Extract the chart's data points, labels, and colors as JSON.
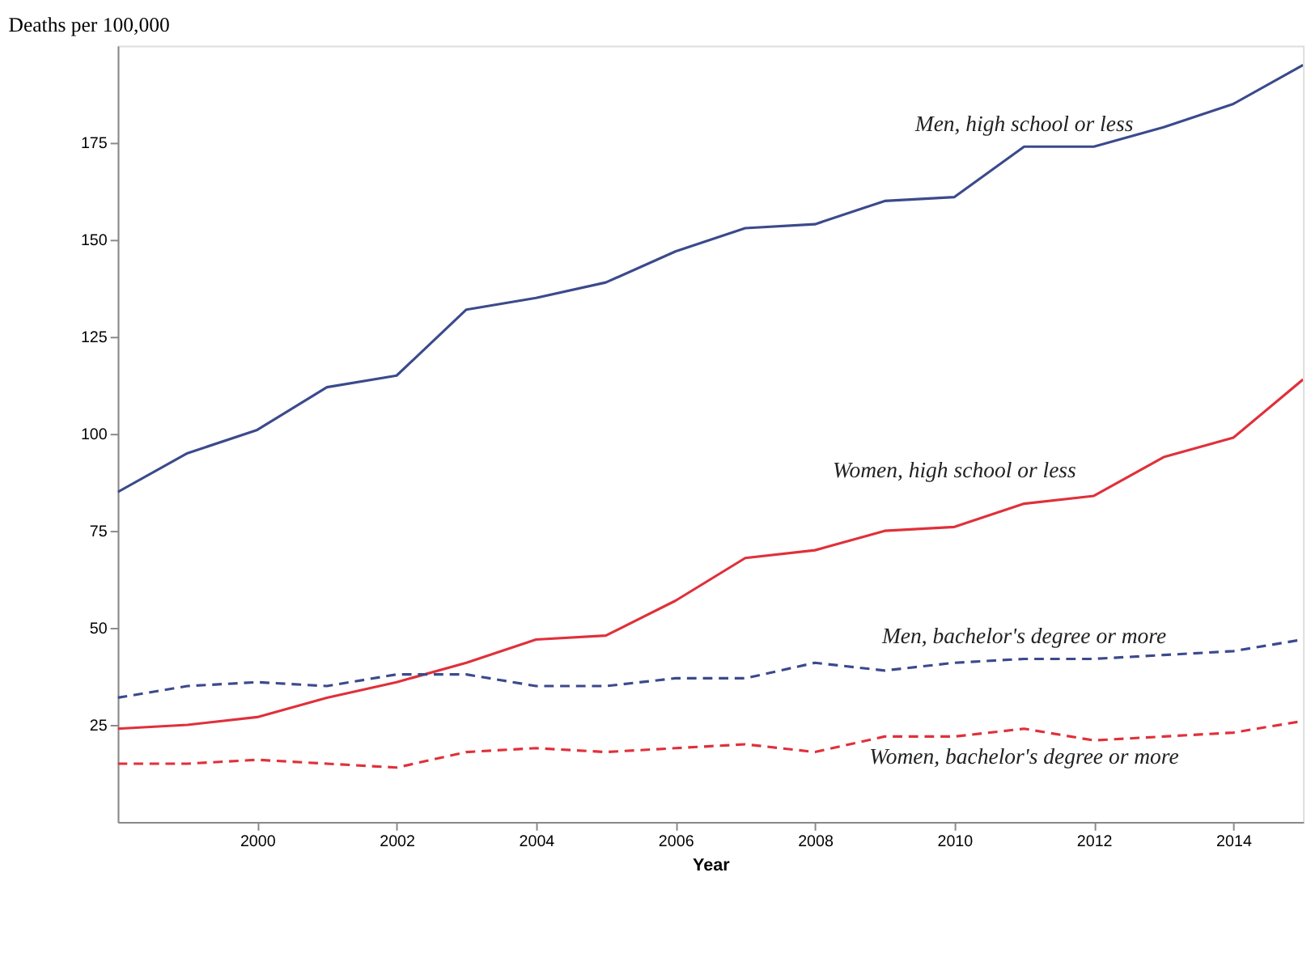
{
  "chart_data": {
    "type": "line",
    "ylabel": "Deaths per 100,000",
    "xlabel": "Year",
    "x": [
      1998,
      1999,
      2000,
      2001,
      2002,
      2003,
      2004,
      2005,
      2006,
      2007,
      2008,
      2009,
      2010,
      2011,
      2012,
      2013,
      2014,
      2015
    ],
    "xlim": [
      1998,
      2015
    ],
    "xticks": [
      2000,
      2002,
      2004,
      2006,
      2008,
      2010,
      2012,
      2014
    ],
    "ylim": [
      0,
      200
    ],
    "yticks": [
      25,
      50,
      75,
      100,
      125,
      150,
      175
    ],
    "grid": false,
    "legend": false,
    "series": [
      {
        "name": "Men, high school or less",
        "color": "#3b4a8c",
        "line_style": "solid",
        "values": [
          85,
          95,
          101,
          112,
          115,
          132,
          135,
          139,
          147,
          153,
          154,
          160,
          161,
          174,
          174,
          179,
          185,
          195
        ]
      },
      {
        "name": "Women, high school or less",
        "color": "#e0303a",
        "line_style": "solid",
        "values": [
          24,
          25,
          27,
          32,
          36,
          41,
          47,
          48,
          57,
          68,
          70,
          75,
          76,
          82,
          84,
          94,
          99,
          114
        ]
      },
      {
        "name": "Men, bachelor's degree or more",
        "color": "#3b4a8c",
        "line_style": "dashed",
        "values": [
          32,
          35,
          36,
          35,
          38,
          38,
          35,
          35,
          37,
          37,
          41,
          39,
          41,
          42,
          42,
          43,
          44,
          47
        ]
      },
      {
        "name": "Women, bachelor's degree or more",
        "color": "#e0303a",
        "line_style": "dashed",
        "values": [
          15,
          15,
          16,
          15,
          14,
          18,
          19,
          18,
          19,
          20,
          18,
          22,
          22,
          24,
          21,
          22,
          23,
          26
        ]
      }
    ]
  }
}
